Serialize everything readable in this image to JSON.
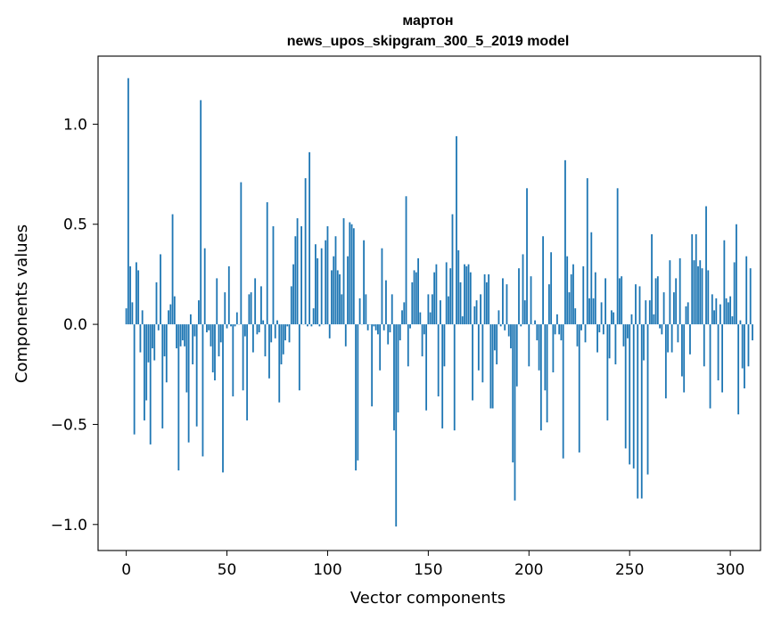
{
  "chart_data": {
    "type": "bar",
    "title": "мартон",
    "subtitle": "news_upos_skipgram_300_5_2019 model",
    "xlabel": "Vector components",
    "ylabel": "Components values",
    "xlim": [
      -14,
      315
    ],
    "ylim": [
      -1.13,
      1.34
    ],
    "xticks": [
      0,
      50,
      100,
      150,
      200,
      250,
      300
    ],
    "xtick_labels": [
      "0",
      "50",
      "100",
      "150",
      "200",
      "250",
      "300"
    ],
    "yticks": [
      -1.0,
      -0.5,
      0.0,
      0.5,
      1.0
    ],
    "ytick_labels": [
      "−1.0",
      "−0.5",
      "0.0",
      "0.5",
      "1.0"
    ],
    "grid": false,
    "bar_color": "#1f77b4",
    "series": [
      {
        "name": "components",
        "values": [
          0.08,
          1.23,
          0.29,
          0.11,
          -0.55,
          0.31,
          0.27,
          -0.14,
          0.07,
          -0.48,
          -0.38,
          -0.19,
          -0.6,
          -0.12,
          -0.18,
          0.21,
          -0.03,
          0.35,
          -0.52,
          -0.16,
          -0.29,
          0.07,
          0.1,
          0.55,
          0.14,
          -0.12,
          -0.73,
          -0.11,
          -0.08,
          -0.11,
          -0.34,
          -0.59,
          0.05,
          -0.2,
          -0.06,
          -0.51,
          0.12,
          1.12,
          -0.66,
          0.38,
          -0.04,
          -0.03,
          -0.11,
          -0.24,
          -0.28,
          0.23,
          -0.16,
          -0.09,
          -0.74,
          0.16,
          -0.02,
          0.29,
          -0.01,
          -0.36,
          -0.01,
          0.06,
          0.0,
          0.71,
          -0.33,
          -0.06,
          -0.48,
          0.15,
          0.16,
          -0.14,
          0.23,
          -0.05,
          -0.04,
          0.19,
          0.02,
          -0.16,
          0.61,
          -0.27,
          -0.09,
          0.49,
          -0.07,
          0.02,
          -0.39,
          -0.2,
          -0.15,
          -0.08,
          -0.01,
          -0.09,
          0.19,
          0.3,
          0.44,
          0.53,
          -0.33,
          0.49,
          0.0,
          0.73,
          -0.01,
          0.86,
          -0.01,
          0.08,
          0.4,
          0.33,
          -0.01,
          0.38,
          0.0,
          0.42,
          0.49,
          -0.07,
          0.27,
          0.34,
          0.44,
          0.27,
          0.25,
          0.15,
          0.53,
          -0.11,
          0.34,
          0.51,
          0.5,
          0.48,
          -0.73,
          -0.68,
          0.13,
          0.0,
          0.42,
          0.15,
          -0.03,
          0.0,
          -0.41,
          -0.01,
          -0.03,
          -0.05,
          -0.23,
          0.38,
          -0.03,
          0.22,
          -0.1,
          -0.04,
          0.15,
          -0.53,
          -1.01,
          -0.44,
          -0.08,
          0.07,
          0.11,
          0.64,
          -0.21,
          -0.02,
          0.21,
          0.27,
          0.26,
          0.33,
          0.06,
          -0.16,
          -0.05,
          -0.43,
          0.15,
          0.06,
          0.15,
          0.26,
          0.3,
          -0.36,
          0.12,
          -0.52,
          -0.21,
          0.31,
          0.14,
          0.28,
          0.55,
          -0.53,
          0.94,
          0.37,
          0.21,
          0.04,
          0.3,
          0.29,
          0.3,
          0.26,
          -0.38,
          0.09,
          0.12,
          -0.23,
          0.15,
          -0.29,
          0.25,
          0.21,
          0.25,
          -0.42,
          -0.42,
          -0.13,
          -0.2,
          0.07,
          -0.01,
          0.23,
          -0.03,
          0.2,
          -0.06,
          -0.12,
          -0.69,
          -0.88,
          -0.31,
          0.28,
          -0.01,
          0.35,
          0.12,
          0.68,
          -0.21,
          0.24,
          0.0,
          0.02,
          -0.08,
          -0.23,
          -0.53,
          0.44,
          -0.33,
          -0.49,
          0.2,
          0.36,
          -0.24,
          -0.05,
          0.05,
          -0.05,
          -0.08,
          -0.67,
          0.82,
          0.34,
          0.16,
          0.25,
          0.3,
          0.08,
          -0.11,
          -0.64,
          -0.03,
          0.29,
          -0.09,
          0.73,
          0.13,
          0.46,
          0.13,
          0.26,
          -0.14,
          -0.04,
          0.11,
          -0.05,
          0.23,
          -0.48,
          -0.17,
          0.07,
          0.06,
          -0.2,
          0.68,
          0.23,
          0.24,
          -0.11,
          -0.62,
          -0.07,
          -0.7,
          0.05,
          -0.72,
          0.2,
          -0.87,
          0.19,
          -0.87,
          -0.18,
          0.12,
          -0.75,
          0.12,
          0.45,
          0.05,
          0.23,
          0.24,
          -0.02,
          -0.05,
          0.16,
          -0.37,
          -0.14,
          0.32,
          -0.14,
          0.16,
          0.23,
          -0.09,
          0.33,
          -0.26,
          -0.34,
          0.09,
          0.11,
          -0.15,
          0.45,
          0.32,
          0.45,
          0.29,
          0.32,
          0.28,
          -0.21,
          0.59,
          0.27,
          -0.42,
          0.15,
          0.07,
          0.13,
          -0.28,
          0.1,
          -0.34,
          0.42,
          0.13,
          0.11,
          0.14,
          0.04,
          0.31,
          0.5,
          -0.45,
          0.02,
          -0.22,
          -0.32,
          0.34,
          -0.21,
          0.28,
          -0.08
        ]
      }
    ]
  }
}
